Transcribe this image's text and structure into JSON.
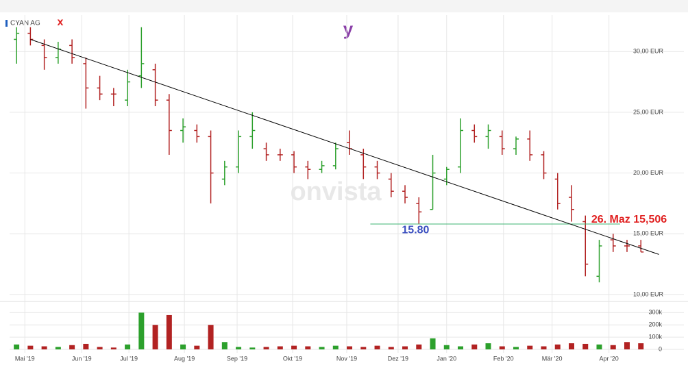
{
  "chart_data": {
    "type": "ohlc",
    "series_name": "CYAN AG",
    "annotations": {
      "x_label": "x",
      "y_label": "y",
      "watermark": "onvista",
      "price_note": "26. Maz 15,506"
    },
    "up_color": "#2ca02c",
    "down_color": "#b22222",
    "xlim": [
      0,
      48.6
    ],
    "xticks": [
      {
        "value": 1.1,
        "label": "Mai '19"
      },
      {
        "value": 5.2,
        "label": "Jun '19"
      },
      {
        "value": 8.6,
        "label": "Jul '19"
      },
      {
        "value": 12.6,
        "label": "Aug '19"
      },
      {
        "value": 16.4,
        "label": "Sep '19"
      },
      {
        "value": 20.4,
        "label": "Okt '19"
      },
      {
        "value": 24.3,
        "label": "Nov '19"
      },
      {
        "value": 28.0,
        "label": "Dez '19"
      },
      {
        "value": 31.5,
        "label": "Jan '20"
      },
      {
        "value": 35.6,
        "label": "Feb '20"
      },
      {
        "value": 39.1,
        "label": "Mär '20"
      },
      {
        "value": 43.2,
        "label": "Apr '20"
      }
    ],
    "ylim": [
      9.6,
      33
    ],
    "yticks": [
      {
        "value": 10,
        "label": "10,00 EUR"
      },
      {
        "value": 15,
        "label": "15,00 EUR"
      },
      {
        "value": 20,
        "label": "20,00 EUR"
      },
      {
        "value": 25,
        "label": "25,00 EUR"
      },
      {
        "value": 30,
        "label": "30,00 EUR"
      }
    ],
    "open": [
      31,
      31.5,
      30.5,
      29.5,
      30.5,
      29,
      27,
      26.5,
      26,
      28,
      28.5,
      26,
      23.5,
      23.5,
      23,
      19.5,
      20.5,
      23,
      22,
      21.5,
      21.5,
      20.5,
      20.3,
      20.6,
      22.5,
      21.5,
      20.5,
      19.5,
      18.5,
      17.5,
      17,
      19.5,
      20.5,
      23.5,
      23,
      23,
      22,
      22.8,
      21.5,
      19.5,
      18,
      16,
      11.5,
      14.5,
      14,
      14
    ],
    "high": [
      32,
      32,
      31,
      30.8,
      31,
      29.5,
      28,
      27,
      28.5,
      32,
      29,
      26.5,
      24.5,
      24,
      23.5,
      21,
      23.5,
      25,
      22.5,
      22,
      21.8,
      21,
      21,
      22.5,
      23.5,
      22,
      21,
      20,
      19,
      18,
      21.5,
      20.5,
      24.5,
      24,
      24,
      23.5,
      23,
      23.5,
      21.8,
      20,
      19,
      16.5,
      14.5,
      15,
      14.5,
      14.5
    ],
    "low": [
      29,
      30.5,
      28.5,
      29,
      29,
      25.3,
      26,
      25.5,
      25.5,
      27,
      25.5,
      21.5,
      22.5,
      22.5,
      17.5,
      19,
      20,
      22,
      21,
      21,
      20,
      19.5,
      20,
      20.3,
      21.5,
      19.5,
      19.5,
      18,
      17.5,
      15.8,
      17,
      19,
      20,
      22.5,
      22,
      21.5,
      21.5,
      21,
      19.5,
      17,
      16,
      11.5,
      11,
      13.5,
      13.5,
      13.5
    ],
    "close": [
      31.5,
      31,
      29.5,
      30.2,
      29.5,
      27,
      26.5,
      26.5,
      27.5,
      29,
      26,
      23.5,
      23.8,
      23,
      20,
      20.5,
      23,
      23.5,
      21.5,
      21.5,
      20.5,
      20.3,
      20.6,
      22,
      22,
      20.5,
      20,
      18.5,
      18,
      16.8,
      20,
      20.3,
      23.5,
      23,
      23.5,
      22,
      22.8,
      21.5,
      20,
      17.5,
      17,
      12.5,
      14,
      14,
      14,
      13.5
    ],
    "volume": [
      40000,
      30000,
      25000,
      20000,
      35000,
      45000,
      20000,
      15000,
      40000,
      300000,
      200000,
      280000,
      40000,
      30000,
      200000,
      60000,
      20000,
      15000,
      20000,
      25000,
      30000,
      25000,
      20000,
      30000,
      25000,
      20000,
      30000,
      20000,
      25000,
      40000,
      90000,
      35000,
      25000,
      40000,
      50000,
      25000,
      20000,
      30000,
      25000,
      40000,
      50000,
      45000,
      40000,
      35000,
      60000,
      50000
    ],
    "vlim": [
      0,
      330000
    ],
    "vticks": [
      0,
      {
        "value": 100000,
        "label": "100k"
      },
      {
        "value": 200000,
        "label": "200k"
      },
      {
        "value": 300000,
        "label": "300k"
      }
    ],
    "hline": {
      "value": 15.8,
      "label": "15.80",
      "x": [
        26,
        44
      ]
    },
    "trendline": {
      "x": [
        1.5,
        46.8
      ],
      "values": [
        31,
        13.3
      ]
    },
    "grid": true
  }
}
